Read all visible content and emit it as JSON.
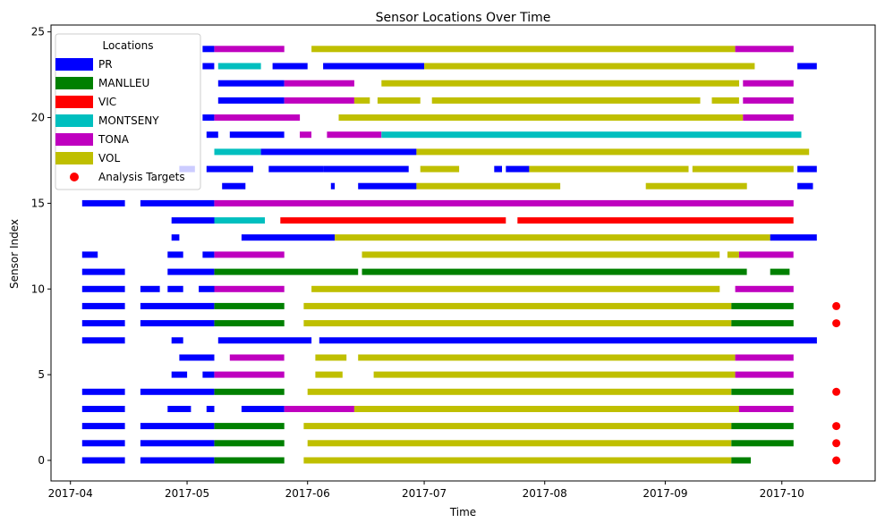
{
  "chart_data": {
    "type": "timeline",
    "title": "Sensor Locations Over Time",
    "xlabel": "Time",
    "ylabel": "Sensor Index",
    "x_range": [
      "2017-03-27",
      "2017-10-25"
    ],
    "y_range": [
      -1.2,
      25.4
    ],
    "x_ticks": [
      "2017-04",
      "2017-05",
      "2017-06",
      "2017-07",
      "2017-08",
      "2017-09",
      "2017-10"
    ],
    "x_tick_dates": [
      "2017-04-01",
      "2017-05-01",
      "2017-06-01",
      "2017-07-01",
      "2017-08-01",
      "2017-09-01",
      "2017-10-01"
    ],
    "y_ticks": [
      0,
      5,
      10,
      15,
      20,
      25
    ],
    "grid": false,
    "legend": {
      "title": "Locations",
      "placement": "top-left",
      "items": [
        "PR",
        "MANLLEU",
        "VIC",
        "MONTSENY",
        "TONA",
        "VOL",
        "Analysis Targets"
      ]
    },
    "location_colors": {
      "PR": "#0000ff",
      "MANLLEU": "#008000",
      "VIC": "#ff0000",
      "MONTSENY": "#00bfbf",
      "TONA": "#bf00bf",
      "VOL": "#bfbf00",
      "Analysis Targets": "#ff0000"
    },
    "analysis_targets": {
      "date": "2017-10-15",
      "sensors": [
        0,
        1,
        2,
        4,
        8,
        9
      ]
    },
    "sensors": [
      {
        "index": 0,
        "segments": [
          [
            "PR",
            "2017-04-04",
            "2017-04-15"
          ],
          [
            "PR",
            "2017-04-19",
            "2017-05-08"
          ],
          [
            "MANLLEU",
            "2017-05-08",
            "2017-05-26"
          ],
          [
            "VOL",
            "2017-05-31",
            "2017-09-18"
          ],
          [
            "MANLLEU",
            "2017-09-18",
            "2017-09-23"
          ]
        ]
      },
      {
        "index": 1,
        "segments": [
          [
            "PR",
            "2017-04-04",
            "2017-04-15"
          ],
          [
            "PR",
            "2017-04-19",
            "2017-05-08"
          ],
          [
            "MANLLEU",
            "2017-05-08",
            "2017-05-26"
          ],
          [
            "VOL",
            "2017-06-01",
            "2017-09-18"
          ],
          [
            "MANLLEU",
            "2017-09-18",
            "2017-10-04"
          ]
        ]
      },
      {
        "index": 2,
        "segments": [
          [
            "PR",
            "2017-04-04",
            "2017-04-15"
          ],
          [
            "PR",
            "2017-04-19",
            "2017-05-08"
          ],
          [
            "MANLLEU",
            "2017-05-08",
            "2017-05-26"
          ],
          [
            "VOL",
            "2017-05-31",
            "2017-09-18"
          ],
          [
            "MANLLEU",
            "2017-09-18",
            "2017-10-04"
          ]
        ]
      },
      {
        "index": 3,
        "segments": [
          [
            "PR",
            "2017-04-04",
            "2017-04-15"
          ],
          [
            "PR",
            "2017-04-26",
            "2017-05-02"
          ],
          [
            "PR",
            "2017-05-06",
            "2017-05-08"
          ],
          [
            "PR",
            "2017-05-15",
            "2017-05-26"
          ],
          [
            "TONA",
            "2017-05-26",
            "2017-06-13"
          ],
          [
            "VOL",
            "2017-06-13",
            "2017-09-20"
          ],
          [
            "TONA",
            "2017-09-20",
            "2017-10-04"
          ]
        ]
      },
      {
        "index": 4,
        "segments": [
          [
            "PR",
            "2017-04-04",
            "2017-04-15"
          ],
          [
            "PR",
            "2017-04-19",
            "2017-05-08"
          ],
          [
            "MANLLEU",
            "2017-05-08",
            "2017-05-26"
          ],
          [
            "VOL",
            "2017-06-01",
            "2017-09-18"
          ],
          [
            "MANLLEU",
            "2017-09-18",
            "2017-10-04"
          ]
        ]
      },
      {
        "index": 5,
        "segments": [
          [
            "PR",
            "2017-04-27",
            "2017-05-01"
          ],
          [
            "PR",
            "2017-05-05",
            "2017-05-08"
          ],
          [
            "TONA",
            "2017-05-08",
            "2017-05-26"
          ],
          [
            "VOL",
            "2017-06-03",
            "2017-06-10"
          ],
          [
            "VOL",
            "2017-06-18",
            "2017-09-19"
          ],
          [
            "TONA",
            "2017-09-19",
            "2017-10-04"
          ]
        ]
      },
      {
        "index": 6,
        "segments": [
          [
            "PR",
            "2017-04-29",
            "2017-05-08"
          ],
          [
            "TONA",
            "2017-05-12",
            "2017-05-26"
          ],
          [
            "VOL",
            "2017-06-03",
            "2017-06-11"
          ],
          [
            "VOL",
            "2017-06-14",
            "2017-09-19"
          ],
          [
            "TONA",
            "2017-09-19",
            "2017-10-04"
          ]
        ]
      },
      {
        "index": 7,
        "segments": [
          [
            "PR",
            "2017-04-04",
            "2017-04-15"
          ],
          [
            "PR",
            "2017-04-27",
            "2017-04-30"
          ],
          [
            "PR",
            "2017-05-09",
            "2017-06-02"
          ],
          [
            "PR",
            "2017-06-04",
            "2017-10-10"
          ]
        ]
      },
      {
        "index": 8,
        "segments": [
          [
            "PR",
            "2017-04-04",
            "2017-04-15"
          ],
          [
            "PR",
            "2017-04-19",
            "2017-05-08"
          ],
          [
            "MANLLEU",
            "2017-05-08",
            "2017-05-26"
          ],
          [
            "VOL",
            "2017-05-31",
            "2017-09-18"
          ],
          [
            "MANLLEU",
            "2017-09-18",
            "2017-10-04"
          ]
        ]
      },
      {
        "index": 9,
        "segments": [
          [
            "PR",
            "2017-04-04",
            "2017-04-15"
          ],
          [
            "PR",
            "2017-04-19",
            "2017-05-08"
          ],
          [
            "MANLLEU",
            "2017-05-08",
            "2017-05-26"
          ],
          [
            "VOL",
            "2017-05-31",
            "2017-09-18"
          ],
          [
            "MANLLEU",
            "2017-09-18",
            "2017-10-04"
          ]
        ]
      },
      {
        "index": 10,
        "segments": [
          [
            "PR",
            "2017-04-04",
            "2017-04-15"
          ],
          [
            "PR",
            "2017-04-19",
            "2017-04-24"
          ],
          [
            "PR",
            "2017-04-26",
            "2017-04-30"
          ],
          [
            "PR",
            "2017-05-04",
            "2017-05-08"
          ],
          [
            "TONA",
            "2017-05-08",
            "2017-05-26"
          ],
          [
            "VOL",
            "2017-06-02",
            "2017-09-15"
          ],
          [
            "TONA",
            "2017-09-19",
            "2017-10-04"
          ]
        ]
      },
      {
        "index": 11,
        "segments": [
          [
            "PR",
            "2017-04-04",
            "2017-04-15"
          ],
          [
            "PR",
            "2017-04-26",
            "2017-05-08"
          ],
          [
            "MANLLEU",
            "2017-05-08",
            "2017-06-14"
          ],
          [
            "MANLLEU",
            "2017-06-15",
            "2017-09-22"
          ],
          [
            "MANLLEU",
            "2017-09-28",
            "2017-10-03"
          ]
        ]
      },
      {
        "index": 12,
        "segments": [
          [
            "PR",
            "2017-04-04",
            "2017-04-08"
          ],
          [
            "PR",
            "2017-04-26",
            "2017-04-30"
          ],
          [
            "PR",
            "2017-05-05",
            "2017-05-08"
          ],
          [
            "TONA",
            "2017-05-08",
            "2017-05-26"
          ],
          [
            "VOL",
            "2017-06-15",
            "2017-09-15"
          ],
          [
            "VOL",
            "2017-09-17",
            "2017-09-20"
          ],
          [
            "TONA",
            "2017-09-20",
            "2017-10-04"
          ]
        ]
      },
      {
        "index": 13,
        "segments": [
          [
            "PR",
            "2017-04-27",
            "2017-04-29"
          ],
          [
            "PR",
            "2017-05-15",
            "2017-06-08"
          ],
          [
            "VOL",
            "2017-06-08",
            "2017-09-28"
          ],
          [
            "PR",
            "2017-09-28",
            "2017-10-10"
          ]
        ]
      },
      {
        "index": 14,
        "segments": [
          [
            "PR",
            "2017-04-27",
            "2017-05-08"
          ],
          [
            "MONTSENY",
            "2017-05-08",
            "2017-05-21"
          ],
          [
            "VIC",
            "2017-05-25",
            "2017-07-22"
          ],
          [
            "VIC",
            "2017-07-25",
            "2017-10-04"
          ]
        ]
      },
      {
        "index": 15,
        "segments": [
          [
            "PR",
            "2017-04-04",
            "2017-04-15"
          ],
          [
            "PR",
            "2017-04-19",
            "2017-05-08"
          ],
          [
            "TONA",
            "2017-05-08",
            "2017-10-04"
          ]
        ]
      },
      {
        "index": 16,
        "segments": [
          [
            "PR",
            "2017-05-10",
            "2017-05-16"
          ],
          [
            "PR",
            "2017-06-07",
            "2017-06-08"
          ],
          [
            "PR",
            "2017-06-14",
            "2017-06-29"
          ],
          [
            "VOL",
            "2017-06-29",
            "2017-08-05"
          ],
          [
            "VOL",
            "2017-08-27",
            "2017-09-22"
          ],
          [
            "PR",
            "2017-10-05",
            "2017-10-09"
          ]
        ]
      },
      {
        "index": 17,
        "segments": [
          [
            "PR",
            "2017-04-29",
            "2017-05-03"
          ],
          [
            "PR",
            "2017-05-06",
            "2017-05-18"
          ],
          [
            "PR",
            "2017-05-22",
            "2017-06-05"
          ],
          [
            "PR",
            "2017-06-05",
            "2017-06-27"
          ],
          [
            "VOL",
            "2017-06-30",
            "2017-07-10"
          ],
          [
            "PR",
            "2017-07-19",
            "2017-07-21"
          ],
          [
            "PR",
            "2017-07-22",
            "2017-07-28"
          ],
          [
            "VOL",
            "2017-07-28",
            "2017-09-07"
          ],
          [
            "VOL",
            "2017-09-08",
            "2017-10-04"
          ],
          [
            "PR",
            "2017-10-05",
            "2017-10-10"
          ]
        ]
      },
      {
        "index": 18,
        "segments": [
          [
            "MONTSENY",
            "2017-05-08",
            "2017-05-20"
          ],
          [
            "PR",
            "2017-05-20",
            "2017-06-29"
          ],
          [
            "VOL",
            "2017-06-29",
            "2017-10-08"
          ]
        ]
      },
      {
        "index": 19,
        "segments": [
          [
            "PR",
            "2017-05-06",
            "2017-05-09"
          ],
          [
            "PR",
            "2017-05-12",
            "2017-05-26"
          ],
          [
            "TONA",
            "2017-05-30",
            "2017-06-02"
          ],
          [
            "TONA",
            "2017-06-06",
            "2017-06-20"
          ],
          [
            "MONTSENY",
            "2017-06-20",
            "2017-10-06"
          ]
        ]
      },
      {
        "index": 20,
        "segments": [
          [
            "PR",
            "2017-05-05",
            "2017-05-08"
          ],
          [
            "TONA",
            "2017-05-08",
            "2017-05-30"
          ],
          [
            "VOL",
            "2017-06-09",
            "2017-09-21"
          ],
          [
            "TONA",
            "2017-09-21",
            "2017-10-04"
          ]
        ]
      },
      {
        "index": 21,
        "segments": [
          [
            "PR",
            "2017-05-09",
            "2017-05-26"
          ],
          [
            "TONA",
            "2017-05-26",
            "2017-06-13"
          ],
          [
            "VOL",
            "2017-06-13",
            "2017-06-17"
          ],
          [
            "VOL",
            "2017-06-19",
            "2017-06-30"
          ],
          [
            "VOL",
            "2017-07-03",
            "2017-09-10"
          ],
          [
            "VOL",
            "2017-09-13",
            "2017-09-20"
          ],
          [
            "TONA",
            "2017-09-21",
            "2017-10-04"
          ]
        ]
      },
      {
        "index": 22,
        "segments": [
          [
            "PR",
            "2017-05-09",
            "2017-05-26"
          ],
          [
            "TONA",
            "2017-05-26",
            "2017-06-13"
          ],
          [
            "VOL",
            "2017-06-20",
            "2017-09-20"
          ],
          [
            "TONA",
            "2017-09-21",
            "2017-10-04"
          ]
        ]
      },
      {
        "index": 23,
        "segments": [
          [
            "PR",
            "2017-05-05",
            "2017-05-08"
          ],
          [
            "MONTSENY",
            "2017-05-09",
            "2017-05-20"
          ],
          [
            "PR",
            "2017-05-23",
            "2017-06-01"
          ],
          [
            "PR",
            "2017-06-05",
            "2017-07-01"
          ],
          [
            "VOL",
            "2017-07-01",
            "2017-09-24"
          ],
          [
            "PR",
            "2017-10-05",
            "2017-10-10"
          ]
        ]
      },
      {
        "index": 24,
        "segments": [
          [
            "PR",
            "2017-05-05",
            "2017-05-08"
          ],
          [
            "TONA",
            "2017-05-08",
            "2017-05-26"
          ],
          [
            "VOL",
            "2017-06-02",
            "2017-09-19"
          ],
          [
            "TONA",
            "2017-09-19",
            "2017-10-04"
          ]
        ]
      }
    ]
  }
}
